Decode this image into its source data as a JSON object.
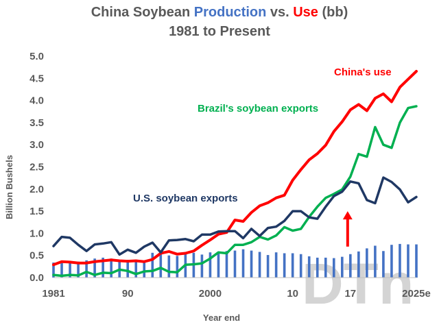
{
  "chart_data": {
    "type": "line",
    "title_parts": [
      {
        "text": "China Soybean ",
        "color": "#595959"
      },
      {
        "text": "Production",
        "color": "#4472c4"
      },
      {
        "text": " vs. ",
        "color": "#595959"
      },
      {
        "text": "Use",
        "color": "#ff0000"
      },
      {
        "text": " (bb)",
        "color": "#595959"
      }
    ],
    "subtitle": "1981 to Present",
    "ylabel": "Billion Bushels",
    "xlabel": "Year end",
    "ylim": [
      0,
      5
    ],
    "yticks": [
      "0.0",
      "0.5",
      "1.0",
      "1.5",
      "2.0",
      "2.5",
      "3.0",
      "3.5",
      "4.0",
      "4.5",
      "5.0"
    ],
    "ytick_values": [
      0,
      0.5,
      1,
      1.5,
      2,
      2.5,
      3,
      3.5,
      4,
      4.5,
      5
    ],
    "xlim": [
      1981,
      2025
    ],
    "xticks": [
      {
        "year": 1981,
        "label": "1981"
      },
      {
        "year": 1990,
        "label": "90"
      },
      {
        "year": 2000,
        "label": "2000"
      },
      {
        "year": 2010,
        "label": "10"
      },
      {
        "year": 2017,
        "label": "17"
      },
      {
        "year": 2025,
        "label": "2025e"
      }
    ],
    "x": [
      1981,
      1982,
      1983,
      1984,
      1985,
      1986,
      1987,
      1988,
      1989,
      1990,
      1991,
      1992,
      1993,
      1994,
      1995,
      1996,
      1997,
      1998,
      1999,
      2000,
      2001,
      2002,
      2003,
      2004,
      2005,
      2006,
      2007,
      2008,
      2009,
      2010,
      2011,
      2012,
      2013,
      2014,
      2015,
      2016,
      2017,
      2018,
      2019,
      2020,
      2021,
      2022,
      2023,
      2024,
      2025
    ],
    "bars": {
      "name": "Production",
      "color": "#4472c4",
      "values": [
        0.34,
        0.33,
        0.36,
        0.36,
        0.39,
        0.43,
        0.45,
        0.43,
        0.38,
        0.4,
        0.36,
        0.38,
        0.56,
        0.59,
        0.5,
        0.49,
        0.54,
        0.56,
        0.52,
        0.57,
        0.57,
        0.6,
        0.61,
        0.64,
        0.61,
        0.58,
        0.51,
        0.57,
        0.55,
        0.55,
        0.53,
        0.48,
        0.45,
        0.45,
        0.44,
        0.47,
        0.53,
        0.59,
        0.66,
        0.72,
        0.6,
        0.74,
        0.76,
        0.75,
        0.75
      ]
    },
    "series": [
      {
        "name": "China's use",
        "color": "#ff0000",
        "values": [
          0.29,
          0.36,
          0.35,
          0.33,
          0.33,
          0.36,
          0.38,
          0.4,
          0.38,
          0.37,
          0.38,
          0.36,
          0.41,
          0.55,
          0.59,
          0.53,
          0.55,
          0.6,
          0.73,
          0.85,
          0.98,
          1.02,
          1.3,
          1.27,
          1.47,
          1.62,
          1.69,
          1.8,
          1.86,
          2.2,
          2.44,
          2.66,
          2.8,
          2.99,
          3.3,
          3.52,
          3.79,
          3.91,
          3.77,
          4.05,
          4.15,
          3.97,
          4.3,
          4.48,
          4.66
        ]
      },
      {
        "name": "Brazil's soybean exports",
        "color": "#00b050",
        "values": [
          0.06,
          0.04,
          0.06,
          0.05,
          0.13,
          0.06,
          0.11,
          0.1,
          0.18,
          0.15,
          0.08,
          0.14,
          0.15,
          0.22,
          0.13,
          0.12,
          0.29,
          0.3,
          0.32,
          0.43,
          0.57,
          0.55,
          0.74,
          0.74,
          0.8,
          0.92,
          0.86,
          0.95,
          1.14,
          1.06,
          1.1,
          1.37,
          1.6,
          1.8,
          1.89,
          1.99,
          2.28,
          2.79,
          2.73,
          3.4,
          3.0,
          2.93,
          3.5,
          3.83,
          3.87
        ]
      },
      {
        "name": "U.S. soybean exports",
        "color": "#1f3864",
        "values": [
          0.71,
          0.92,
          0.9,
          0.74,
          0.6,
          0.75,
          0.77,
          0.8,
          0.52,
          0.63,
          0.56,
          0.7,
          0.79,
          0.57,
          0.84,
          0.85,
          0.87,
          0.82,
          0.97,
          0.97,
          1.04,
          1.05,
          1.05,
          0.89,
          1.1,
          0.94,
          1.12,
          1.15,
          1.28,
          1.5,
          1.5,
          1.36,
          1.33,
          1.6,
          1.84,
          1.94,
          2.17,
          2.13,
          1.75,
          1.68,
          2.26,
          2.16,
          1.99,
          1.7,
          1.82
        ]
      }
    ],
    "arrow": {
      "year": 2017,
      "from": 0.7,
      "to": 1.5,
      "color": "#ff0000"
    },
    "legend": "inline",
    "grid": false,
    "watermark": "DTn"
  }
}
